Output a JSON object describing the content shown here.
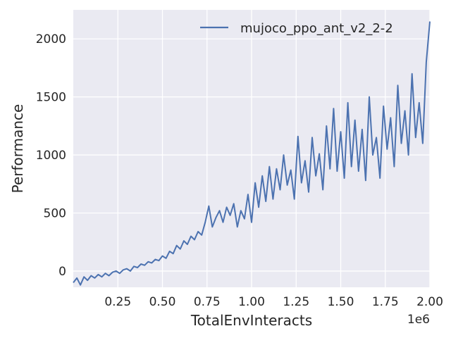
{
  "chart_data": {
    "type": "line",
    "xlabel": "TotalEnvInteracts",
    "ylabel": "Performance",
    "x_offset_label": "1e6",
    "xlim": [
      0,
      2.0
    ],
    "ylim": [
      -140,
      2250
    ],
    "x_scale": 1000000,
    "x_ticks": [
      0.25,
      0.5,
      0.75,
      1.0,
      1.25,
      1.5,
      1.75,
      2.0
    ],
    "x_tick_labels": [
      "0.25",
      "0.50",
      "0.75",
      "1.00",
      "1.25",
      "1.50",
      "1.75",
      "2.00"
    ],
    "y_ticks": [
      0,
      500,
      1000,
      1500,
      2000
    ],
    "y_tick_labels": [
      "0",
      "500",
      "1000",
      "1500",
      "2000"
    ],
    "grid": true,
    "legend_position": "top-right",
    "colors": {
      "background": "#eaeaf2",
      "grid": "#ffffff",
      "line": "#4c72b0",
      "text": "#262626"
    },
    "series": [
      {
        "name": "mujoco_ppo_ant_v2_2-2",
        "x": [
          0,
          0.02,
          0.04,
          0.06,
          0.08,
          0.1,
          0.12,
          0.14,
          0.16,
          0.18,
          0.2,
          0.22,
          0.24,
          0.26,
          0.28,
          0.3,
          0.32,
          0.34,
          0.36,
          0.38,
          0.4,
          0.42,
          0.44,
          0.46,
          0.48,
          0.5,
          0.52,
          0.54,
          0.56,
          0.58,
          0.6,
          0.62,
          0.64,
          0.66,
          0.68,
          0.7,
          0.72,
          0.74,
          0.76,
          0.78,
          0.8,
          0.82,
          0.84,
          0.86,
          0.88,
          0.9,
          0.92,
          0.94,
          0.96,
          0.98,
          1.0,
          1.02,
          1.04,
          1.06,
          1.08,
          1.1,
          1.12,
          1.14,
          1.16,
          1.18,
          1.2,
          1.22,
          1.24,
          1.26,
          1.28,
          1.3,
          1.32,
          1.34,
          1.36,
          1.38,
          1.4,
          1.42,
          1.44,
          1.46,
          1.48,
          1.5,
          1.52,
          1.54,
          1.56,
          1.58,
          1.6,
          1.62,
          1.64,
          1.66,
          1.68,
          1.7,
          1.72,
          1.74,
          1.76,
          1.78,
          1.8,
          1.82,
          1.84,
          1.86,
          1.88,
          1.9,
          1.92,
          1.94,
          1.96,
          1.98,
          2.0
        ],
        "values": [
          -100,
          -60,
          -120,
          -50,
          -80,
          -40,
          -60,
          -30,
          -50,
          -20,
          -40,
          -10,
          0,
          -20,
          10,
          20,
          0,
          40,
          30,
          60,
          50,
          80,
          70,
          100,
          90,
          130,
          110,
          170,
          150,
          220,
          190,
          260,
          230,
          300,
          270,
          340,
          310,
          420,
          560,
          380,
          460,
          520,
          420,
          550,
          480,
          580,
          380,
          520,
          450,
          660,
          420,
          760,
          550,
          820,
          600,
          900,
          620,
          880,
          700,
          1000,
          740,
          870,
          620,
          1160,
          760,
          950,
          680,
          1150,
          820,
          1010,
          700,
          1250,
          880,
          1400,
          860,
          1200,
          800,
          1450,
          900,
          1300,
          860,
          1220,
          780,
          1500,
          1000,
          1150,
          800,
          1420,
          1050,
          1320,
          900,
          1600,
          1100,
          1380,
          1000,
          1700,
          1150,
          1450,
          1100,
          1800,
          2150
        ]
      }
    ]
  }
}
